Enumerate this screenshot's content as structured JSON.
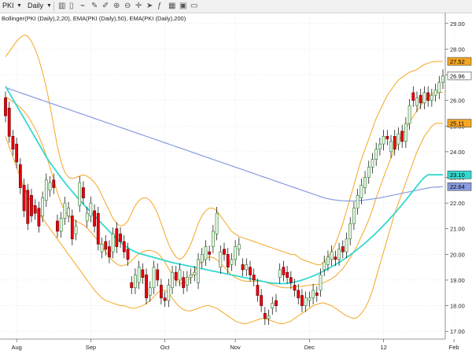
{
  "toolbar": {
    "symbol": "PKI",
    "interval": "Daily",
    "icons": [
      "bar-chart-icon",
      "candlestick-icon",
      "line-chart-icon",
      "pencil-icon",
      "eyedropper-icon",
      "zoom-in-icon",
      "zoom-out-icon",
      "crosshair-icon",
      "arrow-icon",
      "indicator-icon",
      "table-icon",
      "save-icon",
      "window-icon"
    ]
  },
  "legend": "Bollinger(PKI (Daily),2,20), EMA(PKI (Daily),50), EMA(PKI (Daily),200)",
  "colors": {
    "up": "#eaf6ea",
    "up_border": "#2c7a2c",
    "down": "#e8000b",
    "down_border": "#6a0000",
    "wick": "#000000",
    "bollinger": "#f5a623",
    "ema50": "#33d9d0",
    "ema200": "#8a9be0",
    "grid": "#dcdcdc",
    "axis_text": "#222222"
  },
  "chart_data": {
    "type": "candlestick",
    "ylim": [
      16.7,
      29.3
    ],
    "y_ticks": [
      "29.00",
      "28.00",
      "27.00",
      "26.00",
      "25.00",
      "24.00",
      "23.00",
      "22.00",
      "21.00",
      "20.00",
      "19.00",
      "18.00",
      "17.00"
    ],
    "x_labels": [
      "Aug",
      "Sep",
      "Oct",
      "Nov",
      "Dec",
      "12",
      "Feb"
    ],
    "x_label_index": [
      3,
      23,
      43,
      62,
      82,
      102,
      121
    ],
    "price_tags": [
      {
        "value": "27.52",
        "kind": "bollinger"
      },
      {
        "value": "26.96",
        "kind": "last"
      },
      {
        "value": "25.11",
        "kind": "bollinger"
      },
      {
        "value": "23.10",
        "kind": "ema50"
      },
      {
        "value": "22.64",
        "kind": "ema200"
      }
    ],
    "candles": [
      [
        26.1,
        25.4
      ],
      [
        25.7,
        24.6
      ],
      [
        24.6,
        24.1
      ],
      [
        24.3,
        23.6
      ],
      [
        23.5,
        22.6
      ],
      [
        22.7,
        21.7
      ],
      [
        22.5,
        21.2
      ],
      [
        22.3,
        21.5
      ],
      [
        21.9,
        21.6
      ],
      [
        21.8,
        21.1
      ],
      [
        21.5,
        22.2
      ],
      [
        22.1,
        22.9
      ],
      [
        22.5,
        22.8
      ],
      [
        22.9,
        22.6
      ],
      [
        21.3,
        20.9
      ],
      [
        20.9,
        21.4
      ],
      [
        21.4,
        22.0
      ],
      [
        21.5,
        21.8
      ],
      [
        21.5,
        20.6
      ],
      [
        20.8,
        21.1
      ],
      [
        21.9,
        22.8
      ],
      [
        22.6,
        22.2
      ],
      [
        21.3,
        21.6
      ],
      [
        21.5,
        22.0
      ],
      [
        21.7,
        21.1
      ],
      [
        21.6,
        20.4
      ],
      [
        20.1,
        20.4
      ],
      [
        20.5,
        20.2
      ],
      [
        20.3,
        19.9
      ],
      [
        20.1,
        20.8
      ],
      [
        21.0,
        20.3
      ],
      [
        20.8,
        20.5
      ],
      [
        20.5,
        20.1
      ],
      [
        20.2,
        19.8
      ],
      [
        18.9,
        18.7
      ],
      [
        18.7,
        19.2
      ],
      [
        18.9,
        19.5
      ],
      [
        19.4,
        19.1
      ],
      [
        19.2,
        18.3
      ],
      [
        18.4,
        18.7
      ],
      [
        18.7,
        19.5
      ],
      [
        19.4,
        19.0
      ],
      [
        18.8,
        18.3
      ],
      [
        18.3,
        18.2
      ],
      [
        18.2,
        18.8
      ],
      [
        18.7,
        19.3
      ],
      [
        19.3,
        19.0
      ],
      [
        19.0,
        19.4
      ],
      [
        19.1,
        18.7
      ],
      [
        18.8,
        19.1
      ],
      [
        19.1,
        19.2
      ],
      [
        19.2,
        19.3
      ],
      [
        18.9,
        19.8
      ],
      [
        19.7,
        20.0
      ],
      [
        19.8,
        20.3
      ],
      [
        20.1,
        20.0
      ],
      [
        20.3,
        20.9
      ],
      [
        20.8,
        21.6
      ],
      [
        19.5,
        20.1
      ],
      [
        20.2,
        20.0
      ],
      [
        20.0,
        19.5
      ],
      [
        19.6,
        19.8
      ],
      [
        19.8,
        20.3
      ],
      [
        20.2,
        20.4
      ],
      [
        19.6,
        19.4
      ],
      [
        19.4,
        19.6
      ],
      [
        19.5,
        19.2
      ],
      [
        19.2,
        19.0
      ],
      [
        18.8,
        18.4
      ],
      [
        18.4,
        18.0
      ],
      [
        17.7,
        17.5
      ],
      [
        17.5,
        17.6
      ],
      [
        17.9,
        18.1
      ],
      [
        18.2,
        18.0
      ],
      [
        19.1,
        19.4
      ],
      [
        19.5,
        19.2
      ],
      [
        19.3,
        19.1
      ],
      [
        19.1,
        18.9
      ],
      [
        18.8,
        18.6
      ],
      [
        18.6,
        18.3
      ],
      [
        18.4,
        18.0
      ],
      [
        18.0,
        18.3
      ],
      [
        18.2,
        18.3
      ],
      [
        18.3,
        18.6
      ],
      [
        18.5,
        18.4
      ],
      [
        18.6,
        19.2
      ],
      [
        19.4,
        19.7
      ],
      [
        19.6,
        19.9
      ],
      [
        19.8,
        20.1
      ],
      [
        19.9,
        19.8
      ],
      [
        19.8,
        20.2
      ],
      [
        20.3,
        20.1
      ],
      [
        20.1,
        20.6
      ],
      [
        20.6,
        21.2
      ],
      [
        21.2,
        21.8
      ],
      [
        21.8,
        22.3
      ],
      [
        22.2,
        22.7
      ],
      [
        22.6,
        23.0
      ],
      [
        23.0,
        23.4
      ],
      [
        23.4,
        23.7
      ],
      [
        23.7,
        24.1
      ],
      [
        24.1,
        24.3
      ],
      [
        24.3,
        24.6
      ],
      [
        24.6,
        24.5
      ],
      [
        24.0,
        24.4
      ],
      [
        24.6,
        24.1
      ],
      [
        24.3,
        24.7
      ],
      [
        24.8,
        24.4
      ],
      [
        24.4,
        25.1
      ],
      [
        25.1,
        25.8
      ],
      [
        26.3,
        26.0
      ],
      [
        25.8,
        26.1
      ],
      [
        26.2,
        25.9
      ],
      [
        25.9,
        26.3
      ],
      [
        26.3,
        26.0
      ],
      [
        26.0,
        26.2
      ],
      [
        26.2,
        26.4
      ],
      [
        26.3,
        26.7
      ],
      [
        26.7,
        26.96
      ]
    ],
    "ema50": [
      26.55,
      26.3,
      26.05,
      25.8,
      25.55,
      25.3,
      25.05,
      24.8,
      24.55,
      24.3,
      24.05,
      23.8,
      23.58,
      23.38,
      23.18,
      22.98,
      22.8,
      22.62,
      22.45,
      22.28,
      22.12,
      21.96,
      21.8,
      21.65,
      21.5,
      21.35,
      21.2,
      21.05,
      20.9,
      20.75,
      20.6,
      20.48,
      20.36,
      20.26,
      20.17,
      20.1,
      20.04,
      20.0,
      19.96,
      19.92,
      19.88,
      19.84,
      19.8,
      19.76,
      19.72,
      19.68,
      19.65,
      19.62,
      19.59,
      19.56,
      19.53,
      19.5,
      19.47,
      19.44,
      19.41,
      19.38,
      19.35,
      19.32,
      19.29,
      19.26,
      19.23,
      19.2,
      19.17,
      19.14,
      19.11,
      19.08,
      19.05,
      19.02,
      18.99,
      18.96,
      18.93,
      18.9,
      18.88,
      18.87,
      18.86,
      18.86,
      18.87,
      18.89,
      18.92,
      18.96,
      19.0,
      19.05,
      19.1,
      19.16,
      19.22,
      19.29,
      19.36,
      19.44,
      19.52,
      19.6,
      19.69,
      19.78,
      19.88,
      19.98,
      20.09,
      20.2,
      20.32,
      20.44,
      20.57,
      20.7,
      20.84,
      20.98,
      21.13,
      21.28,
      21.44,
      21.6,
      21.77,
      21.94,
      22.12,
      22.3,
      22.48,
      22.66,
      22.84,
      23.0,
      23.1,
      23.1,
      23.1,
      23.1,
      23.1
    ],
    "ema200": [
      26.5,
      26.45,
      26.4,
      26.35,
      26.3,
      26.25,
      26.2,
      26.15,
      26.1,
      26.05,
      26.0,
      25.95,
      25.9,
      25.85,
      25.8,
      25.75,
      25.7,
      25.65,
      25.6,
      25.55,
      25.5,
      25.45,
      25.4,
      25.35,
      25.3,
      25.25,
      25.2,
      25.15,
      25.1,
      25.05,
      25.0,
      24.95,
      24.9,
      24.85,
      24.8,
      24.75,
      24.7,
      24.65,
      24.6,
      24.55,
      24.5,
      24.45,
      24.4,
      24.35,
      24.3,
      24.25,
      24.2,
      24.15,
      24.1,
      24.05,
      24.0,
      23.95,
      23.9,
      23.85,
      23.8,
      23.75,
      23.7,
      23.65,
      23.6,
      23.55,
      23.5,
      23.45,
      23.4,
      23.35,
      23.3,
      23.25,
      23.2,
      23.15,
      23.1,
      23.05,
      23.0,
      22.95,
      22.9,
      22.85,
      22.8,
      22.75,
      22.7,
      22.65,
      22.6,
      22.55,
      22.5,
      22.45,
      22.4,
      22.35,
      22.3,
      22.25,
      22.2,
      22.17,
      22.14,
      22.12,
      22.1,
      22.09,
      22.08,
      22.08,
      22.08,
      22.09,
      22.1,
      22.12,
      22.14,
      22.16,
      22.18,
      22.2,
      22.23,
      22.26,
      22.29,
      22.32,
      22.35,
      22.38,
      22.41,
      22.44,
      22.47,
      22.5,
      22.53,
      22.56,
      22.59,
      22.61,
      22.62,
      22.63,
      22.64
    ],
    "boll_upper": [
      27.7,
      27.9,
      28.1,
      28.3,
      28.45,
      28.55,
      28.5,
      28.3,
      28.0,
      27.6,
      27.1,
      26.5,
      25.8,
      25.0,
      24.2,
      23.6,
      23.2,
      23.0,
      22.95,
      23.0,
      23.05,
      23.1,
      23.05,
      22.95,
      22.8,
      22.6,
      22.3,
      22.0,
      21.7,
      21.4,
      21.2,
      21.1,
      21.15,
      21.3,
      21.6,
      21.9,
      22.1,
      22.2,
      22.2,
      22.1,
      21.9,
      21.6,
      21.2,
      20.8,
      20.4,
      20.1,
      19.9,
      19.8,
      19.9,
      20.1,
      20.4,
      20.8,
      21.2,
      21.5,
      21.7,
      21.8,
      21.8,
      21.7,
      21.5,
      21.3,
      21.1,
      20.9,
      20.8,
      20.7,
      20.65,
      20.6,
      20.55,
      20.5,
      20.45,
      20.4,
      20.35,
      20.3,
      20.25,
      20.2,
      20.15,
      20.1,
      20.05,
      20.0,
      20.0,
      19.9,
      19.8,
      19.75,
      19.7,
      19.65,
      19.6,
      19.6,
      19.7,
      19.9,
      20.1,
      20.4,
      20.8,
      21.2,
      21.7,
      22.2,
      22.7,
      23.2,
      23.7,
      24.1,
      24.5,
      24.9,
      25.3,
      25.6,
      25.9,
      26.2,
      26.4,
      26.6,
      26.8,
      26.9,
      27.0,
      27.1,
      27.15,
      27.2,
      27.3,
      27.4,
      27.45,
      27.5,
      27.52,
      27.52,
      27.52
    ],
    "boll_lower": [
      24.6,
      24.2,
      23.8,
      23.4,
      23.0,
      22.6,
      22.3,
      22.0,
      21.8,
      21.6,
      21.4,
      21.2,
      21.0,
      20.8,
      20.6,
      20.4,
      20.2,
      20.0,
      19.8,
      19.6,
      19.4,
      19.2,
      19.0,
      18.8,
      18.6,
      18.45,
      18.3,
      18.2,
      18.15,
      18.1,
      18.05,
      18.0,
      18.0,
      17.95,
      17.9,
      17.9,
      17.95,
      18.0,
      18.1,
      18.2,
      18.35,
      18.5,
      18.6,
      18.6,
      18.5,
      18.3,
      18.1,
      17.95,
      17.85,
      17.8,
      17.8,
      17.85,
      17.9,
      17.95,
      18.0,
      18.0,
      17.95,
      17.9,
      17.8,
      17.7,
      17.6,
      17.5,
      17.4,
      17.35,
      17.3,
      17.3,
      17.35,
      17.4,
      17.45,
      17.5,
      17.5,
      17.45,
      17.4,
      17.35,
      17.3,
      17.3,
      17.35,
      17.4,
      17.5,
      17.6,
      17.7,
      17.8,
      17.9,
      18.0,
      18.05,
      18.1,
      18.1,
      18.05,
      18.0,
      17.9,
      17.8,
      17.7,
      17.6,
      17.55,
      17.5,
      17.55,
      17.7,
      17.9,
      18.2,
      18.6,
      19.1,
      19.6,
      20.1,
      20.6,
      21.1,
      21.6,
      22.0,
      22.4,
      22.8,
      23.2,
      23.6,
      24.0,
      24.3,
      24.6,
      24.8,
      25.0,
      25.11,
      25.11,
      25.11
    ]
  }
}
